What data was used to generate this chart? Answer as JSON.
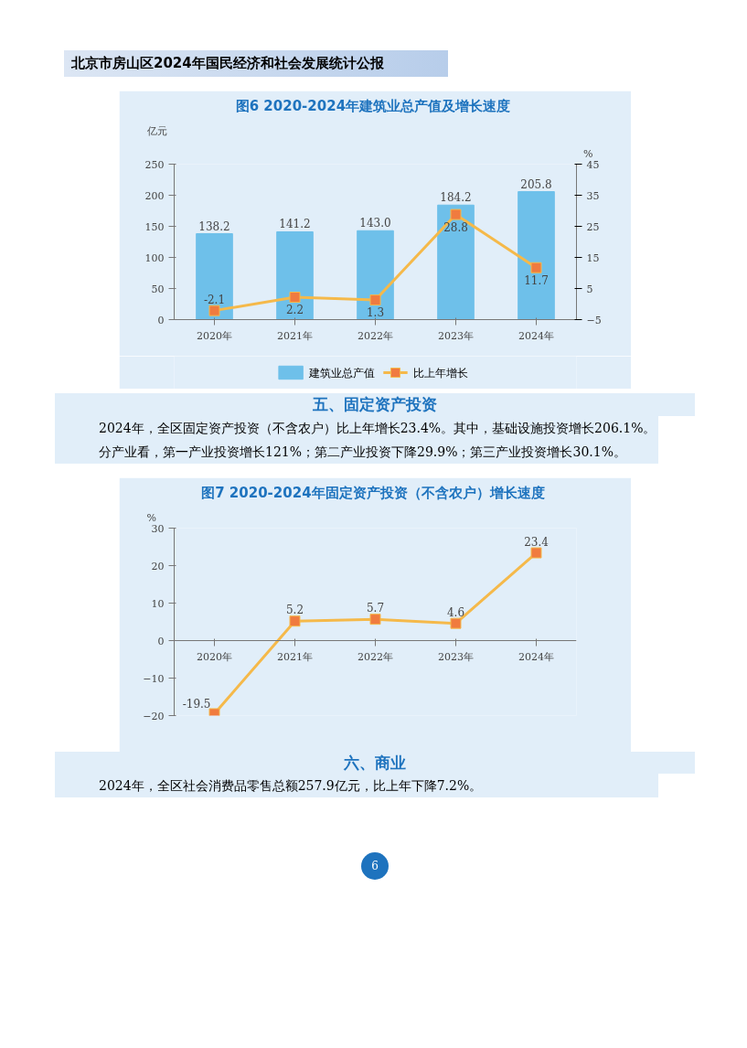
{
  "chart_data": [
    {
      "type": "bar",
      "title": "图6  2020-2024年建筑业总产值及增长速度",
      "ylabel": "亿元",
      "y2label": "%",
      "categories": [
        "2020年",
        "2021年",
        "2022年",
        "2023年",
        "2024年"
      ],
      "series": [
        {
          "name": "建筑业总产值",
          "type": "bar",
          "color": "#6ec0ea",
          "values": [
            138.2,
            141.2,
            143.0,
            184.2,
            205.8
          ],
          "value_labels": [
            "138.2",
            "141.2",
            "143.0",
            "184.2",
            "205.8"
          ]
        },
        {
          "name": "比上年增长",
          "type": "line",
          "axis": "y2",
          "color": "#f5b94a",
          "marker": "square",
          "values": [
            -2.1,
            2.2,
            1.3,
            28.8,
            11.7
          ],
          "value_labels": [
            "-2.1",
            "2.2",
            "1.3",
            "28.8",
            "11.7"
          ]
        }
      ],
      "ylim": [
        0,
        250
      ],
      "yticks": [
        0,
        50,
        100,
        150,
        200,
        250
      ],
      "y2lim": [
        -5,
        45
      ],
      "y2ticks": [
        -5,
        5,
        15,
        25,
        35,
        45
      ],
      "legend": "bottom",
      "grid": false,
      "annotations": [
        "北京市房山区2024年国民经济和社会发展统计公报",
        "五、固定资产投资",
        "2024年，全区固定资产投资（不含农户）比上年增长23.4%。其中，基础设施投资增长206.1%。分产业看，第一产业投资增长121%；第二产业投资下降29.9%；第三产业投资增长30.1%。"
      ]
    },
    {
      "type": "line",
      "title": "图7  2020-2024年固定资产投资（不含农户）增长速度",
      "ylabel": "%",
      "categories": [
        "2020年",
        "2021年",
        "2022年",
        "2023年",
        "2024年"
      ],
      "series": [
        {
          "color": "#f5b94a",
          "values": [
            -19.5,
            5.2,
            5.7,
            4.6,
            23.4
          ]
        }
      ],
      "marker": "square",
      "ylim": [
        -20,
        30
      ],
      "yticks": [
        -20,
        -10,
        0,
        10,
        20,
        30
      ],
      "data_labels": true,
      "grid": false,
      "annotations": [
        "六、商业",
        "2024年，全区社会消费品零售总额257.9亿元，比上年下降7.2%。",
        "6"
      ]
    }
  ]
}
